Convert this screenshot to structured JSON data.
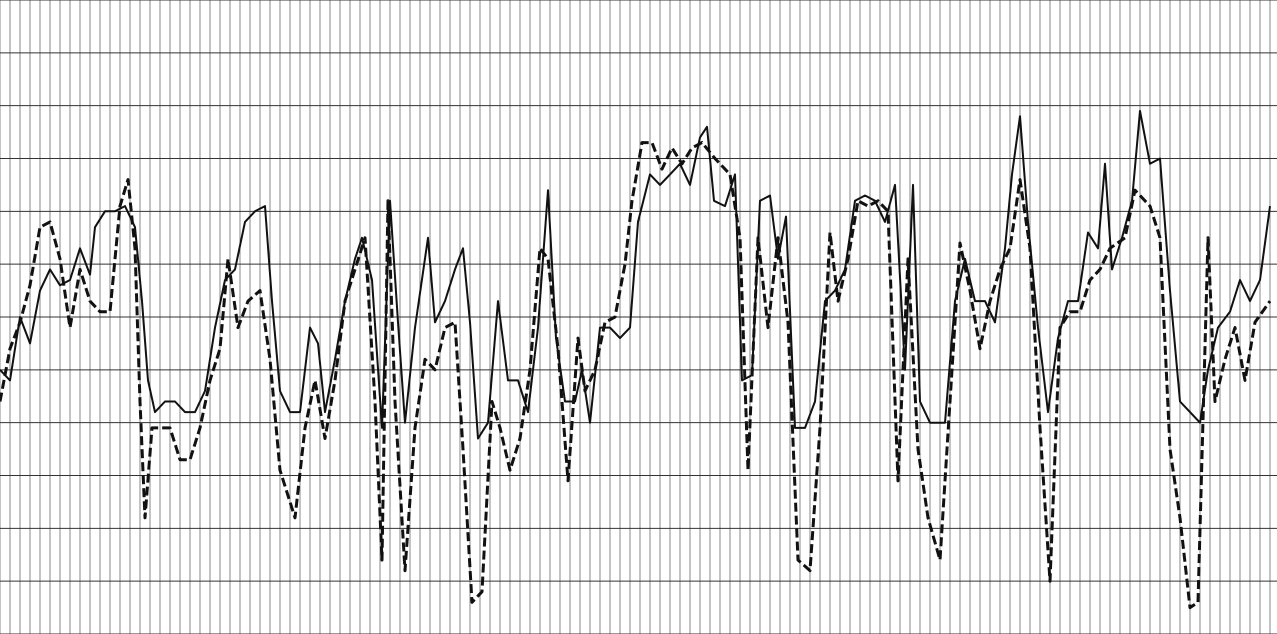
{
  "chart_data": {
    "type": "line",
    "grid": true,
    "xlim": [
      0,
      127.7
    ],
    "ylim": [
      0,
      12
    ],
    "xticks": [
      0,
      1,
      2,
      3,
      4,
      5,
      6,
      7,
      8,
      9,
      10,
      11,
      12,
      13,
      14,
      15,
      16,
      17,
      18,
      19,
      20,
      21,
      22,
      23,
      24,
      25,
      26,
      27,
      28,
      29,
      30,
      31,
      32,
      33,
      34,
      35,
      36,
      37,
      38,
      39,
      40,
      41,
      42,
      43,
      44,
      45,
      46,
      47,
      48,
      49,
      50,
      51,
      52,
      53,
      54,
      55,
      56,
      57,
      58,
      59,
      60,
      61,
      62,
      63,
      64,
      65,
      66,
      67,
      68,
      69,
      70,
      71,
      72,
      73,
      74,
      75,
      76,
      77,
      78,
      79,
      80,
      81,
      82,
      83,
      84,
      85,
      86,
      87,
      88,
      89,
      90,
      91,
      92,
      93,
      94,
      95,
      96,
      97,
      98,
      99,
      100,
      101,
      102,
      103,
      104,
      105,
      106,
      107,
      108,
      109,
      110,
      111,
      112,
      113,
      114,
      115,
      116,
      117,
      118,
      119,
      120,
      121,
      122,
      123,
      124,
      125,
      126,
      127
    ],
    "yticks": [
      0,
      1,
      2,
      3,
      4,
      5,
      6,
      7,
      8,
      9,
      10,
      11,
      12
    ],
    "series": [
      {
        "color": "#111111",
        "dash": false,
        "x": [
          0,
          1,
          2,
          3,
          4,
          5,
          6,
          7,
          8,
          9,
          9.5,
          10.5,
          11.5,
          12.5,
          13.5,
          14.2,
          14.8,
          15.5,
          16.5,
          17.5,
          18.5,
          19.5,
          20.5,
          21.5,
          22.5,
          23.5,
          24.5,
          25.5,
          26.5,
          27.2,
          28,
          29,
          30,
          31,
          31.8,
          32.5,
          33.5,
          34.5,
          35.5,
          36.2,
          37.2,
          38.2,
          39,
          39.8,
          40.5,
          41.5,
          42.8,
          43.5,
          44.5,
          45.5,
          46.3,
          47,
          47.8,
          48.8,
          49.8,
          50.8,
          51.8,
          52.8,
          53.8,
          54.8,
          55.6,
          56.5,
          57.5,
          58.2,
          59,
          60,
          61,
          62,
          63,
          63.8,
          65,
          66,
          67,
          68,
          69,
          70,
          70.7,
          71.4,
          72.5,
          73.5,
          74.2,
          75.2,
          76,
          77,
          77.8,
          78.6,
          79.5,
          80.5,
          81.5,
          82.5,
          83.5,
          84.5,
          85.5,
          86.5,
          87.5,
          88.5,
          89.5,
          90.5,
          91.3,
          92,
          93,
          94.5,
          95.5,
          96.5,
          97.5,
          98.5,
          99.5,
          100.5,
          101.2,
          102,
          102.8,
          103.8,
          104.8,
          105.8,
          106.8,
          107.8,
          108.8,
          109.8,
          110.5,
          111.2,
          112.2,
          113.2,
          114,
          115,
          116,
          117,
          118,
          119,
          120,
          120.8,
          121.8,
          123,
          124,
          125,
          126,
          127
        ],
        "values": [
          5.0,
          4.8,
          6.0,
          5.5,
          6.5,
          6.9,
          6.6,
          6.7,
          7.3,
          6.8,
          7.7,
          8.0,
          8.0,
          8.1,
          7.7,
          6.3,
          4.8,
          4.2,
          4.4,
          4.4,
          4.2,
          4.2,
          4.6,
          5.8,
          6.7,
          6.9,
          7.8,
          8.0,
          8.1,
          6.3,
          4.6,
          4.2,
          4.2,
          5.8,
          5.5,
          4.2,
          5.2,
          6.3,
          7.1,
          7.5,
          6.7,
          3.9,
          8.2,
          5.9,
          4.0,
          5.8,
          7.5,
          5.9,
          6.3,
          6.9,
          7.3,
          5.9,
          3.7,
          4.0,
          6.3,
          4.8,
          4.8,
          4.2,
          5.8,
          8.4,
          5.6,
          4.4,
          4.4,
          5.0,
          4.0,
          5.8,
          5.8,
          5.6,
          5.8,
          7.8,
          8.7,
          8.5,
          8.7,
          8.9,
          8.5,
          9.4,
          9.6,
          8.2,
          8.1,
          8.7,
          4.8,
          4.9,
          8.2,
          8.3,
          7.1,
          7.9,
          3.9,
          3.9,
          4.4,
          6.3,
          6.5,
          6.9,
          8.2,
          8.3,
          8.2,
          7.8,
          8.5,
          5.0,
          8.5,
          4.4,
          4.0,
          4.0,
          6.3,
          7.1,
          6.3,
          6.3,
          5.9,
          7.3,
          8.7,
          9.8,
          7.8,
          5.8,
          4.2,
          5.6,
          6.3,
          6.3,
          7.6,
          7.3,
          8.9,
          6.9,
          7.5,
          8.2,
          9.9,
          8.9,
          9.0,
          6.5,
          4.4,
          4.2,
          4.0,
          5.0,
          5.8,
          6.1,
          6.7,
          6.3,
          6.7,
          8.1
        ]
      },
      {
        "color": "#111111",
        "dash": true,
        "x": [
          0,
          1,
          2,
          3,
          4,
          5,
          6,
          7,
          8,
          9,
          10,
          11,
          12,
          12.8,
          13.5,
          14,
          14.5,
          15.2,
          16,
          17,
          18,
          19,
          20,
          21,
          22,
          22.8,
          23.8,
          24.8,
          26,
          27,
          28,
          29.5,
          30.5,
          31.5,
          32.5,
          33.5,
          34.5,
          35.5,
          36.5,
          37.5,
          38.2,
          38.8,
          39.5,
          40.5,
          41.5,
          42.5,
          43.5,
          44.5,
          45.5,
          46.3,
          47.2,
          48.2,
          49.2,
          50,
          51,
          52,
          53,
          54,
          54.8,
          55.8,
          56.8,
          57.8,
          58.5,
          59.5,
          60.5,
          61.5,
          62.5,
          63.2,
          64.2,
          65.2,
          66.2,
          67.2,
          68.2,
          69.2,
          70.2,
          71.5,
          73,
          74,
          74.8,
          75.8,
          76.8,
          77.8,
          78.8,
          79.8,
          81,
          82,
          83,
          83.8,
          84.8,
          85.8,
          86.8,
          87.8,
          88.8,
          89.8,
          90.8,
          91.8,
          92.8,
          94,
          95,
          96,
          97,
          98,
          99,
          100,
          101,
          102,
          103,
          104,
          105,
          106,
          107,
          108,
          109,
          110,
          111,
          112.5,
          113.5,
          115,
          116,
          117,
          118,
          119,
          119.8,
          120.8,
          121.5,
          122.5,
          123.5,
          124.5,
          125.5,
          127
        ],
        "values": [
          4.4,
          5.4,
          5.9,
          6.6,
          7.7,
          7.8,
          7.1,
          5.8,
          6.9,
          6.3,
          6.1,
          6.1,
          8.1,
          8.6,
          7.3,
          4.4,
          2.2,
          3.9,
          3.9,
          3.9,
          3.3,
          3.3,
          3.9,
          4.8,
          5.4,
          7.1,
          5.8,
          6.3,
          6.5,
          5.2,
          3.1,
          2.2,
          3.9,
          4.8,
          3.7,
          4.8,
          6.3,
          6.9,
          7.5,
          4.4,
          1.4,
          8.2,
          4.4,
          1.2,
          3.9,
          5.2,
          5.0,
          5.8,
          5.9,
          3.5,
          0.6,
          0.8,
          4.4,
          3.9,
          3.1,
          3.7,
          5.0,
          7.3,
          7.1,
          5.4,
          2.9,
          5.6,
          4.6,
          5.0,
          5.9,
          6.0,
          7.0,
          8.2,
          9.3,
          9.3,
          8.8,
          9.2,
          8.9,
          9.2,
          9.3,
          9.0,
          8.7,
          7.5,
          3.1,
          7.5,
          5.8,
          7.5,
          5.9,
          1.4,
          1.2,
          3.9,
          7.6,
          6.3,
          7.1,
          8.2,
          8.1,
          8.2,
          8.0,
          2.9,
          7.1,
          3.5,
          2.2,
          1.4,
          4.4,
          7.4,
          6.5,
          5.4,
          6.3,
          6.9,
          7.3,
          8.6,
          7.3,
          3.9,
          1.0,
          5.8,
          6.1,
          6.1,
          6.7,
          6.9,
          7.3,
          7.5,
          8.4,
          8.1,
          7.5,
          3.5,
          2.2,
          0.5,
          0.6,
          7.5,
          4.4,
          5.2,
          5.8,
          4.8,
          5.9,
          6.3
        ]
      }
    ]
  }
}
